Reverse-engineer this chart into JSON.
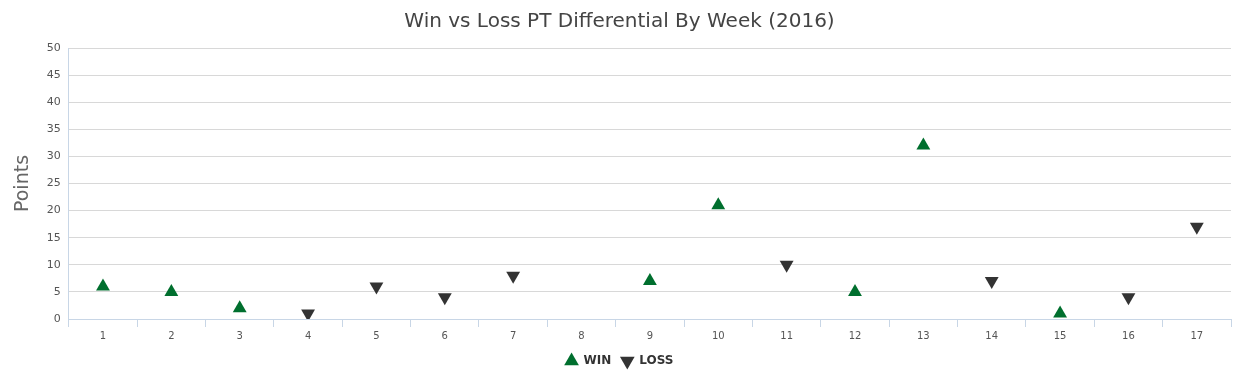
{
  "chart_data": {
    "type": "scatter",
    "title": "Win vs Loss PT Differential By Week (2016)",
    "ylabel": "Points",
    "categories": [
      "1",
      "2",
      "3",
      "4",
      "5",
      "6",
      "7",
      "8",
      "9",
      "10",
      "11",
      "12",
      "13",
      "14",
      "15",
      "16",
      "17"
    ],
    "series": [
      {
        "name": "WIN",
        "color": "#006f2e",
        "marker": "triangle",
        "values": [
          6,
          5,
          2,
          null,
          null,
          null,
          null,
          null,
          7,
          21,
          null,
          5,
          32,
          null,
          1,
          null,
          null
        ]
      },
      {
        "name": "LOSS",
        "color": "#333333",
        "marker": "triangle-down",
        "values": [
          null,
          null,
          null,
          1,
          6,
          4,
          8,
          null,
          null,
          null,
          10,
          null,
          null,
          7,
          null,
          4,
          17
        ]
      }
    ],
    "ylim": [
      0,
      50
    ],
    "yticks": [
      0,
      5,
      10,
      15,
      20,
      25,
      30,
      35,
      40,
      45,
      50
    ],
    "grid": "y",
    "legend": "bottom"
  }
}
